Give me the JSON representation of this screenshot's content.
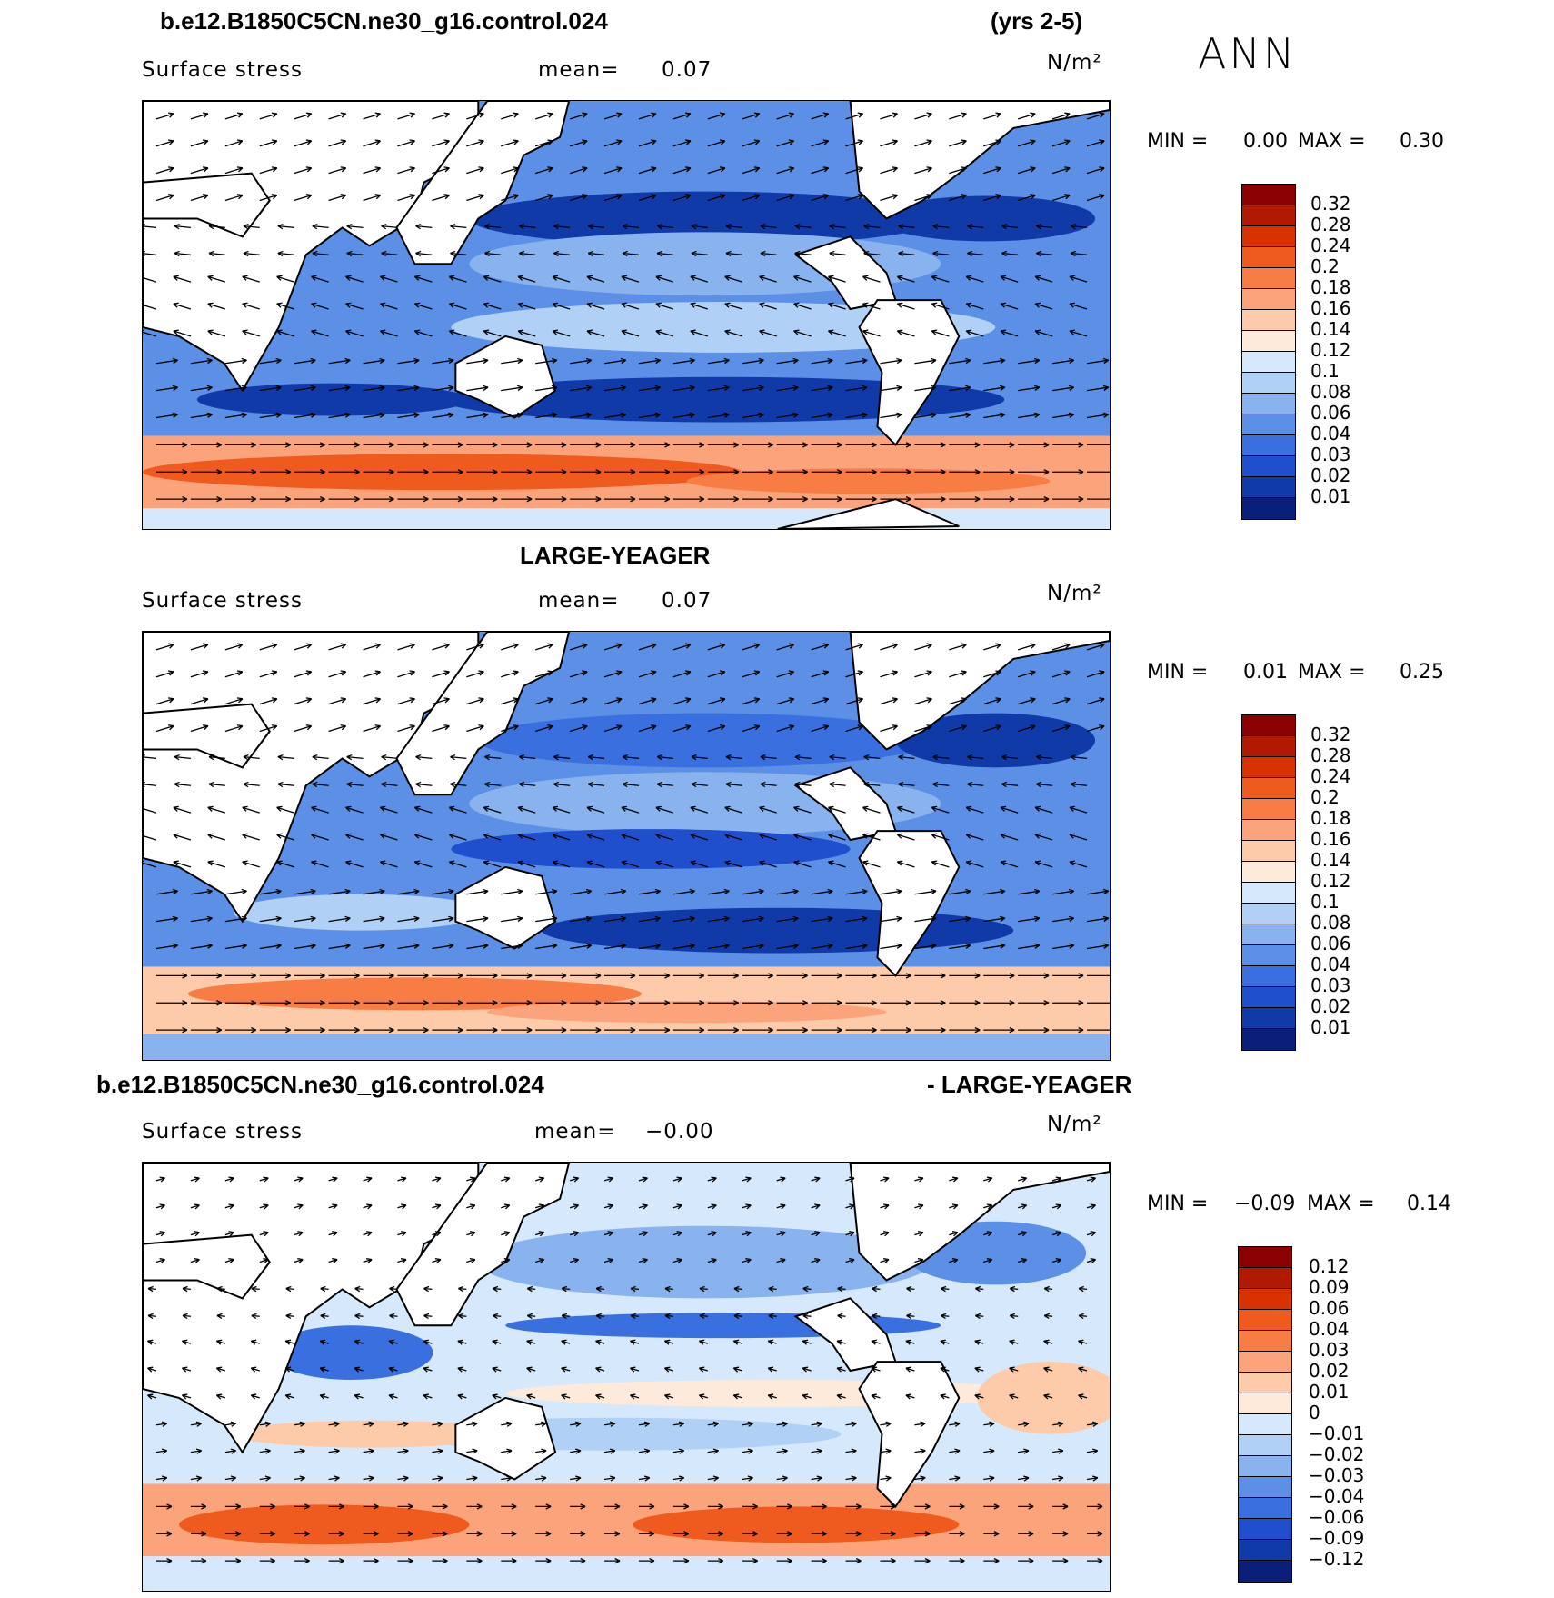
{
  "header": {
    "case_name": "b.e12.B1850C5CN.ne30_g16.control.024",
    "years": "(yrs 2-5)",
    "season": "ANN"
  },
  "panels": [
    {
      "title": "",
      "variable": "Surface stress",
      "mean_label": "mean=",
      "mean_value": "0.07",
      "units": "N/m²",
      "min_label": "MIN =",
      "min_value": "0.00",
      "max_label": "MAX =",
      "max_value": "0.30",
      "colorbar_levels": [
        "0.32",
        "0.28",
        "0.24",
        "0.2",
        "0.18",
        "0.16",
        "0.14",
        "0.12",
        "0.1",
        "0.08",
        "0.06",
        "0.04",
        "0.03",
        "0.02",
        "0.01"
      ],
      "colorbar_colors": [
        "#8b0000",
        "#b01a00",
        "#d83200",
        "#ef5a1e",
        "#f77d45",
        "#fba47c",
        "#fdcaaa",
        "#feeadb",
        "#d6e8fb",
        "#b0d0f6",
        "#89b3ef",
        "#5c8fe6",
        "#3a6fe0",
        "#1f4fcc",
        "#103aa8",
        "#0a1f7a"
      ]
    },
    {
      "title": "LARGE-YEAGER",
      "variable": "Surface stress",
      "mean_label": "mean=",
      "mean_value": "0.07",
      "units": "N/m²",
      "min_label": "MIN =",
      "min_value": "0.01",
      "max_label": "MAX =",
      "max_value": "0.25",
      "colorbar_levels": [
        "0.32",
        "0.28",
        "0.24",
        "0.2",
        "0.18",
        "0.16",
        "0.14",
        "0.12",
        "0.1",
        "0.08",
        "0.06",
        "0.04",
        "0.03",
        "0.02",
        "0.01"
      ],
      "colorbar_colors": [
        "#8b0000",
        "#b01a00",
        "#d83200",
        "#ef5a1e",
        "#f77d45",
        "#fba47c",
        "#fdcaaa",
        "#feeadb",
        "#d6e8fb",
        "#b0d0f6",
        "#89b3ef",
        "#5c8fe6",
        "#3a6fe0",
        "#1f4fcc",
        "#103aa8",
        "#0a1f7a"
      ]
    },
    {
      "title_left": "b.e12.B1850C5CN.ne30_g16.control.024",
      "title_right": "- LARGE-YEAGER",
      "variable": "Surface stress",
      "mean_label": "mean=",
      "mean_value": "−0.00",
      "units": "N/m²",
      "min_label": "MIN =",
      "min_value": "−0.09",
      "max_label": "MAX =",
      "max_value": "0.14",
      "colorbar_levels": [
        "0.12",
        "0.09",
        "0.06",
        "0.04",
        "0.03",
        "0.02",
        "0.01",
        "0",
        "−0.01",
        "−0.02",
        "−0.03",
        "−0.04",
        "−0.06",
        "−0.09",
        "−0.12"
      ],
      "colorbar_colors": [
        "#8b0000",
        "#b01a00",
        "#d83200",
        "#ef5a1e",
        "#f77d45",
        "#fba47c",
        "#fdcaaa",
        "#feeadb",
        "#d6e8fb",
        "#b0d0f6",
        "#89b3ef",
        "#5c8fe6",
        "#3a6fe0",
        "#1f4fcc",
        "#103aa8",
        "#0a1f7a"
      ]
    }
  ]
}
